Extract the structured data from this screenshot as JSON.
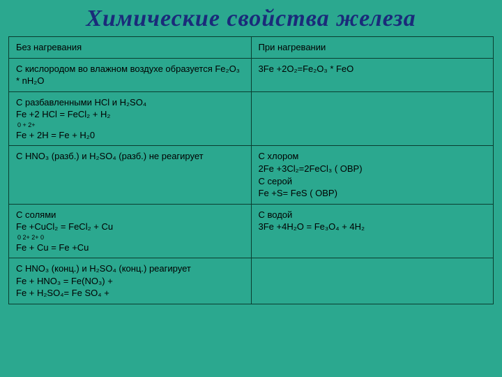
{
  "title": "Химические свойства железа",
  "header": {
    "left": "Без нагревания",
    "right": "При нагревании"
  },
  "rows": [
    {
      "left": "С кислородом во влажном воздухе образуется Fe₂O₃ * nH₂O",
      "right": "3Fe +2O₂=Fe₂O₃ * FeO"
    },
    {
      "left_title": "С разбавленными HCl и H₂SO₄",
      "left_eq1": "Fe +2 HCl = FeCl₂ + H₂",
      "left_charges": "    0          +          2+",
      "left_eq2": "Fe + 2H = Fe  +  H₂0",
      "right": ""
    },
    {
      "left": "С HNO₃ (разб.) и H₂SO₄ (разб.) не реагирует",
      "right_title": "С хлором",
      "right_eq1": "2Fe +3Cl₂=2FeCl₃  ( ОВР)",
      "right_sub": "С серой",
      "right_eq2": "Fe +S= FeS            ( ОВР)"
    },
    {
      "left_title": "С солями",
      "left_eq1": "Fe +CuCl₂ = FeCl₂ + Cu",
      "left_charges": "     0         2+      2+       0",
      "left_eq2": "Fe + Cu = Fe  +Cu",
      "right_title": "С водой",
      "right_eq1": "3Fe +4H₂O = Fe₃O₄ + 4H₂"
    },
    {
      "left_title": "С HNO₃ (конц.) и H₂SO₄ (конц.) реагирует",
      "left_eq1": "Fe + HNO₃ = Fe(NO₃)  +",
      "left_eq2": "Fe + H₂SO₄= Fe SO₄  +",
      "right": ""
    }
  ],
  "colors": {
    "background": "#2ba88f",
    "border": "#0a3d30",
    "title": "#1a2b7a",
    "text": "#000000"
  }
}
